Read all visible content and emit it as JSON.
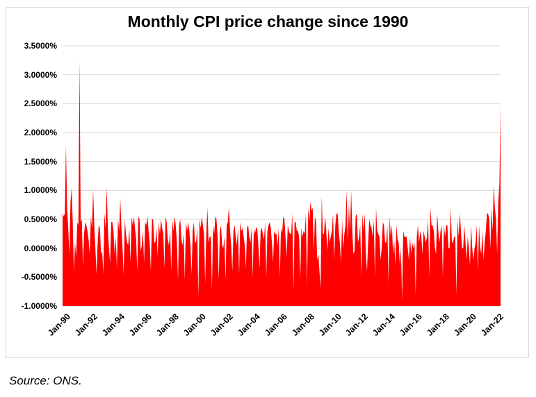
{
  "title": "Monthly CPI price change since 1990",
  "source_note": "Source: ONS.",
  "colors": {
    "series": "#ff0000",
    "grid": "#d9d9d9",
    "frame": "#d9d9d9",
    "text": "#000000",
    "background": "#ffffff"
  },
  "chart_data": {
    "type": "area",
    "title": "Monthly CPI price change since 1990",
    "series_name": "Monthly CPI price change",
    "unit": "%",
    "frequency": "monthly",
    "x_start": "Jan-1990",
    "x_end": "Apr-2022",
    "ylim": [
      -1.0,
      3.5
    ],
    "grid": "horizontal",
    "legend": "none",
    "y_tick_labels": [
      "3.5000%",
      "3.0000%",
      "2.5000%",
      "2.0000%",
      "1.5000%",
      "1.0000%",
      "0.5000%",
      "0.0000%",
      "-0.5000%",
      "-1.0000%"
    ],
    "y_tick_values": [
      3.5,
      3.0,
      2.5,
      2.0,
      1.5,
      1.0,
      0.5,
      0.0,
      -0.5,
      -1.0
    ],
    "x_tick_labels": [
      "Jan-90",
      "Jan-92",
      "Jan-94",
      "Jan-96",
      "Jan-98",
      "Jan-00",
      "Jan-02",
      "Jan-04",
      "Jan-06",
      "Jan-08",
      "Jan-10",
      "Jan-12",
      "Jan-14",
      "Jan-16",
      "Jan-18",
      "Jan-20",
      "Jan-22"
    ],
    "x_tick_month_indices": [
      0,
      24,
      48,
      72,
      96,
      120,
      144,
      168,
      192,
      216,
      240,
      264,
      288,
      312,
      336,
      360,
      384
    ],
    "values": [
      0.6,
      0.55,
      0.6,
      1.78,
      0.7,
      0.35,
      -0.1,
      0.8,
      1.04,
      0.45,
      -0.4,
      0.1,
      -0.15,
      0.45,
      0.4,
      3.25,
      0.45,
      0.5,
      -0.3,
      0.25,
      0.45,
      0.4,
      0.3,
      0.15,
      -0.1,
      0.55,
      0.35,
      1.02,
      0.4,
      0.0,
      -0.45,
      0.1,
      0.4,
      0.35,
      -0.1,
      -0.05,
      -0.45,
      0.6,
      0.35,
      1.06,
      0.35,
      0.0,
      -0.25,
      0.45,
      0.45,
      0.3,
      -0.1,
      0.2,
      -0.35,
      0.5,
      0.3,
      0.86,
      0.35,
      0.0,
      -0.45,
      0.5,
      0.25,
      0.1,
      0.05,
      0.35,
      -0.25,
      0.55,
      0.4,
      0.55,
      0.35,
      0.15,
      -0.4,
      0.55,
      0.5,
      -0.05,
      0.05,
      0.3,
      -0.25,
      0.45,
      0.4,
      0.55,
      0.3,
      0.1,
      -0.4,
      0.5,
      0.5,
      0.1,
      0.1,
      0.35,
      -0.15,
      0.45,
      0.25,
      0.5,
      0.35,
      0.25,
      -0.35,
      0.55,
      0.45,
      0.15,
      0.05,
      0.3,
      -0.4,
      0.5,
      0.3,
      0.55,
      0.4,
      0.1,
      -0.55,
      0.4,
      0.5,
      0.15,
      0.05,
      0.25,
      -0.55,
      0.45,
      0.3,
      0.45,
      0.3,
      0.05,
      -0.45,
      0.3,
      0.45,
      0.1,
      0.1,
      0.35,
      -0.85,
      0.5,
      0.35,
      0.55,
      0.4,
      0.25,
      -0.6,
      0.25,
      0.7,
      0.1,
      0.2,
      0.2,
      -0.7,
      0.4,
      0.25,
      0.55,
      0.5,
      0.2,
      -0.55,
      0.3,
      0.4,
      0.05,
      0.0,
      0.2,
      -0.55,
      0.4,
      0.45,
      0.72,
      0.3,
      0.05,
      -0.4,
      0.3,
      0.4,
      0.2,
      0.05,
      0.35,
      -0.45,
      0.45,
      0.3,
      0.35,
      0.2,
      0.05,
      -0.35,
      0.35,
      0.4,
      0.2,
      0.1,
      0.35,
      -0.5,
      0.35,
      0.25,
      0.35,
      0.35,
      0.05,
      -0.35,
      0.3,
      0.35,
      0.25,
      0.15,
      0.45,
      -0.5,
      0.3,
      0.4,
      0.45,
      0.35,
      0.1,
      -0.25,
      0.3,
      0.25,
      0.25,
      0.05,
      0.35,
      -0.5,
      0.35,
      0.25,
      0.55,
      0.5,
      0.2,
      -0.15,
      0.4,
      0.3,
      0.25,
      0.25,
      0.6,
      -0.75,
      0.45,
      0.45,
      0.3,
      0.3,
      0.2,
      -0.55,
      0.35,
      0.2,
      0.3,
      0.25,
      0.6,
      -0.65,
      0.7,
      0.45,
      0.8,
      0.65,
      0.7,
      -0.05,
      0.55,
      0.45,
      -0.2,
      -0.1,
      -0.4,
      -0.7,
      0.9,
      0.25,
      0.25,
      0.55,
      0.3,
      -0.05,
      0.35,
      0.1,
      0.2,
      0.3,
      0.6,
      -0.2,
      0.4,
      0.6,
      0.6,
      0.3,
      0.1,
      -0.25,
      0.5,
      0.0,
      0.25,
      0.4,
      1.0,
      0.1,
      0.75,
      0.3,
      1.0,
      0.3,
      -0.1,
      -0.05,
      0.55,
      0.6,
      0.1,
      0.2,
      0.4,
      -0.5,
      0.6,
      0.3,
      0.6,
      -0.1,
      -0.4,
      0.1,
      0.5,
      0.4,
      0.35,
      0.2,
      0.5,
      -0.5,
      0.7,
      0.3,
      0.25,
      0.2,
      -0.2,
      0.0,
      0.45,
      0.4,
      0.1,
      0.1,
      0.4,
      -0.6,
      0.55,
      0.2,
      0.4,
      -0.1,
      0.15,
      -0.3,
      0.4,
      0.15,
      0.1,
      -0.3,
      0.0,
      -0.9,
      0.3,
      0.2,
      0.2,
      0.2,
      0.0,
      -0.2,
      0.2,
      -0.1,
      0.1,
      0.0,
      0.1,
      -0.8,
      0.2,
      0.4,
      0.1,
      0.3,
      0.2,
      -0.1,
      0.3,
      0.2,
      0.1,
      0.2,
      0.5,
      -0.5,
      0.7,
      0.4,
      0.4,
      0.3,
      0.0,
      -0.1,
      0.6,
      0.3,
      0.1,
      0.3,
      0.4,
      -0.5,
      0.4,
      0.2,
      0.4,
      0.4,
      0.0,
      0.0,
      0.7,
      0.1,
      0.1,
      0.2,
      0.2,
      -0.8,
      0.5,
      0.2,
      0.6,
      0.3,
      0.0,
      0.0,
      0.4,
      0.1,
      -0.2,
      0.2,
      0.0,
      -0.3,
      0.4,
      0.0,
      -0.2,
      0.0,
      0.1,
      0.4,
      -0.4,
      0.4,
      0.0,
      -0.1,
      0.3,
      -0.2,
      0.1,
      0.3,
      0.6,
      0.6,
      0.5,
      0.0,
      0.7,
      0.3,
      1.1,
      0.7,
      0.5,
      -0.1,
      0.8,
      1.1,
      2.45
    ]
  }
}
